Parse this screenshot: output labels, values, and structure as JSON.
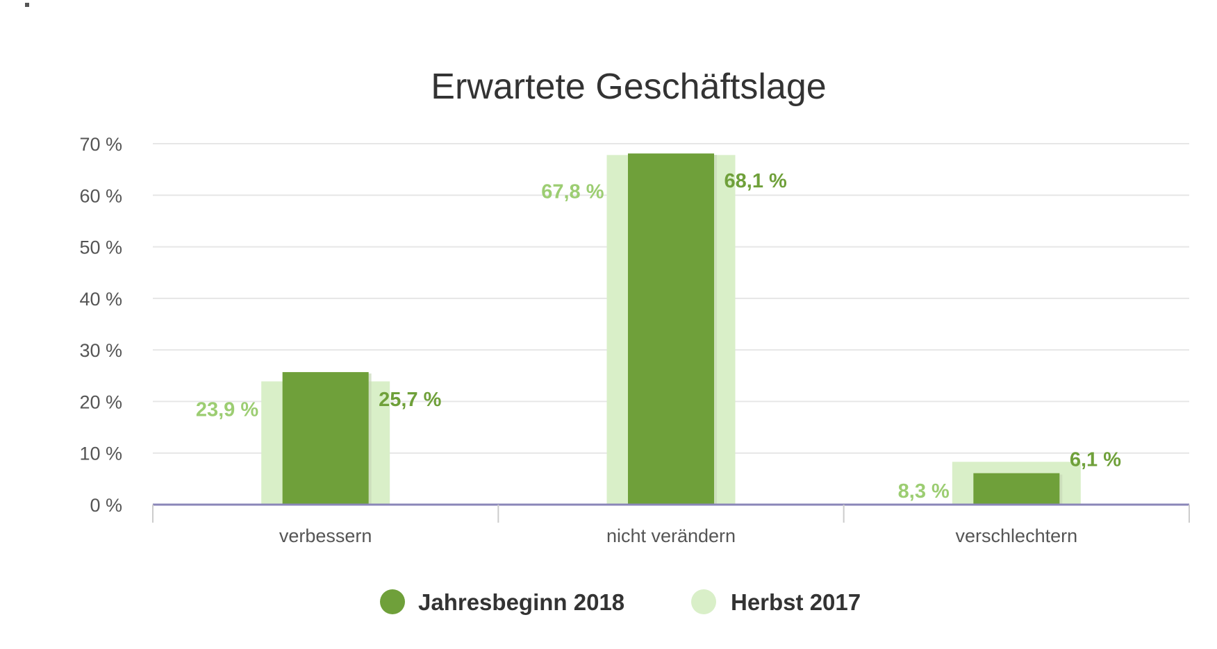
{
  "chart_data": {
    "type": "bar",
    "title": "Erwartete Geschäftslage",
    "categories": [
      "verbessern",
      "nicht verändern",
      "verschlechtern"
    ],
    "series": [
      {
        "name": "Jahresbeginn 2018",
        "values": [
          25.7,
          68.1,
          6.1
        ],
        "labels": [
          "25,7 %",
          "68,1 %",
          "6,1 %"
        ],
        "color": "#6fa03a"
      },
      {
        "name": "Herbst 2017",
        "values": [
          23.9,
          67.8,
          8.3
        ],
        "labels": [
          "23,9 %",
          "67,8 %",
          "8,3 %"
        ],
        "color": "#d9efc8",
        "label_color": "#9ccd72"
      }
    ],
    "ylim": [
      0,
      70
    ],
    "yticks": [
      0,
      10,
      20,
      30,
      40,
      50,
      60,
      70
    ],
    "ytick_labels": [
      "0 %",
      "10 %",
      "20 %",
      "30 %",
      "40 %",
      "50 %",
      "60 %",
      "70 %"
    ],
    "grid": true,
    "legend": "bottom-center",
    "xlabel": "",
    "ylabel": ""
  },
  "colors": {
    "axis": "#8a86b8",
    "grid": "#e6e6e6"
  }
}
